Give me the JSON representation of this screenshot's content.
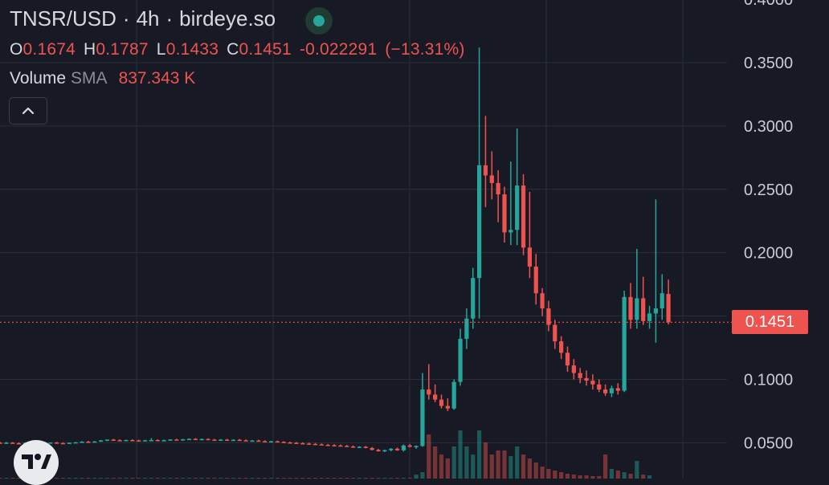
{
  "header": {
    "symbol": "TNSR/USD",
    "interval": "4h",
    "source": "birdeye.so",
    "status": "market-open"
  },
  "ohlc": {
    "o_label": "O",
    "o_value": "0.1674",
    "h_label": "H",
    "h_value": "0.1787",
    "l_label": "L",
    "l_value": "0.1433",
    "c_label": "C",
    "c_value": "0.1451",
    "change": "-0.022291",
    "change_pct": "(−13.31%)"
  },
  "volume": {
    "label": "Volume",
    "indicator": "SMA",
    "value": "837.343 K"
  },
  "last_price_label": "0.1451",
  "colors": {
    "bg": "#171a24",
    "up": "#26a69a",
    "down": "#ef5350",
    "grid": "#2a2e39",
    "text": "#d7d9de"
  },
  "icons": {
    "collapse": "chevron-up-icon",
    "logo": "tradingview-logo-icon"
  },
  "chart_data": {
    "type": "candlestick",
    "ylim": [
      0.03,
      0.4
    ],
    "y_ticks": [
      "0.4000",
      "0.3500",
      "0.3000",
      "0.2500",
      "0.2000",
      "0.1500",
      "0.1000",
      "0.0500"
    ],
    "last_price": 0.1451,
    "candles": [
      [
        0.05,
        0.0508,
        0.0496,
        0.0498
      ],
      [
        0.0498,
        0.0506,
        0.0494,
        0.05
      ],
      [
        0.05,
        0.0505,
        0.0492,
        0.0496
      ],
      [
        0.0496,
        0.0503,
        0.049,
        0.0494
      ],
      [
        0.0494,
        0.0502,
        0.049,
        0.0499
      ],
      [
        0.0499,
        0.0504,
        0.0493,
        0.0497
      ],
      [
        0.0497,
        0.0506,
        0.0494,
        0.0503
      ],
      [
        0.0503,
        0.0508,
        0.0495,
        0.0498
      ],
      [
        0.0498,
        0.0504,
        0.0493,
        0.0501
      ],
      [
        0.0501,
        0.0507,
        0.0495,
        0.0497
      ],
      [
        0.0497,
        0.0503,
        0.049,
        0.0494
      ],
      [
        0.0494,
        0.0502,
        0.049,
        0.05
      ],
      [
        0.05,
        0.0506,
        0.0495,
        0.0503
      ],
      [
        0.0503,
        0.0512,
        0.0498,
        0.0508
      ],
      [
        0.0508,
        0.0514,
        0.0502,
        0.0506
      ],
      [
        0.0506,
        0.0513,
        0.0501,
        0.051
      ],
      [
        0.051,
        0.0522,
        0.0506,
        0.0518
      ],
      [
        0.0518,
        0.0526,
        0.0512,
        0.0524
      ],
      [
        0.0524,
        0.053,
        0.0516,
        0.052
      ],
      [
        0.052,
        0.0527,
        0.0513,
        0.0516
      ],
      [
        0.0516,
        0.0524,
        0.0511,
        0.0521
      ],
      [
        0.0521,
        0.0527,
        0.0515,
        0.0518
      ],
      [
        0.0518,
        0.0524,
        0.0512,
        0.0515
      ],
      [
        0.0515,
        0.0522,
        0.051,
        0.0519
      ],
      [
        0.0519,
        0.0536,
        0.0514,
        0.0521
      ],
      [
        0.0521,
        0.0527,
        0.0513,
        0.0517
      ],
      [
        0.0517,
        0.0524,
        0.0511,
        0.052
      ],
      [
        0.052,
        0.0528,
        0.0515,
        0.0525
      ],
      [
        0.0525,
        0.0531,
        0.0518,
        0.0522
      ],
      [
        0.0522,
        0.053,
        0.0516,
        0.0527
      ],
      [
        0.0527,
        0.0534,
        0.0521,
        0.053
      ],
      [
        0.053,
        0.0536,
        0.0523,
        0.0526
      ],
      [
        0.0526,
        0.0533,
        0.052,
        0.0529
      ],
      [
        0.0529,
        0.0535,
        0.0522,
        0.0524
      ],
      [
        0.0524,
        0.053,
        0.0518,
        0.0521
      ],
      [
        0.0521,
        0.0528,
        0.0515,
        0.0524
      ],
      [
        0.0524,
        0.053,
        0.0518,
        0.052
      ],
      [
        0.052,
        0.0527,
        0.0514,
        0.0523
      ],
      [
        0.0523,
        0.0529,
        0.0517,
        0.0519
      ],
      [
        0.0519,
        0.0525,
        0.0511,
        0.0514
      ],
      [
        0.0514,
        0.0521,
        0.0508,
        0.0517
      ],
      [
        0.0517,
        0.0523,
        0.051,
        0.0512
      ],
      [
        0.0512,
        0.0519,
        0.0505,
        0.0508
      ],
      [
        0.0508,
        0.0515,
        0.0501,
        0.0511
      ],
      [
        0.0511,
        0.0517,
        0.0503,
        0.0506
      ],
      [
        0.0506,
        0.0512,
        0.0498,
        0.0502
      ],
      [
        0.0502,
        0.0509,
        0.0495,
        0.0499
      ],
      [
        0.0499,
        0.0506,
        0.0492,
        0.0496
      ],
      [
        0.0496,
        0.0503,
        0.0489,
        0.0493
      ],
      [
        0.0493,
        0.05,
        0.0486,
        0.049
      ],
      [
        0.049,
        0.0498,
        0.0484,
        0.0487
      ],
      [
        0.0487,
        0.0494,
        0.048,
        0.0483
      ],
      [
        0.0483,
        0.049,
        0.0477,
        0.048
      ],
      [
        0.048,
        0.0488,
        0.0474,
        0.0478
      ],
      [
        0.0478,
        0.0486,
        0.0471,
        0.0475
      ],
      [
        0.0475,
        0.0482,
        0.0468,
        0.047
      ],
      [
        0.047,
        0.0478,
        0.0462,
        0.0465
      ],
      [
        0.0465,
        0.0472,
        0.0458,
        0.0468
      ],
      [
        0.0468,
        0.0474,
        0.0456,
        0.0458
      ],
      [
        0.0458,
        0.0466,
        0.044,
        0.0443
      ],
      [
        0.0443,
        0.0452,
        0.043,
        0.0432
      ],
      [
        0.0432,
        0.0446,
        0.0426,
        0.0441
      ],
      [
        0.0441,
        0.0458,
        0.0432,
        0.0452
      ],
      [
        0.0452,
        0.0462,
        0.0436,
        0.044
      ],
      [
        0.044,
        0.0486,
        0.043,
        0.0478
      ],
      [
        0.0478,
        0.049,
        0.0462,
        0.0468
      ],
      [
        0.0468,
        0.0478,
        0.0452,
        0.0474
      ],
      [
        0.0474,
        0.105,
        0.0468,
        0.092
      ],
      [
        0.092,
        0.112,
        0.084,
        0.088
      ],
      [
        0.088,
        0.096,
        0.082,
        0.084
      ],
      [
        0.084,
        0.088,
        0.077,
        0.079
      ],
      [
        0.079,
        0.085,
        0.075,
        0.077
      ],
      [
        0.077,
        0.1,
        0.076,
        0.098
      ],
      [
        0.098,
        0.14,
        0.095,
        0.132
      ],
      [
        0.132,
        0.156,
        0.124,
        0.148
      ],
      [
        0.148,
        0.188,
        0.14,
        0.18
      ],
      [
        0.18,
        0.362,
        0.148,
        0.269
      ],
      [
        0.269,
        0.308,
        0.236,
        0.261
      ],
      [
        0.261,
        0.28,
        0.242,
        0.255
      ],
      [
        0.255,
        0.265,
        0.224,
        0.246
      ],
      [
        0.246,
        0.252,
        0.208,
        0.216
      ],
      [
        0.216,
        0.272,
        0.206,
        0.218
      ],
      [
        0.218,
        0.298,
        0.206,
        0.253
      ],
      [
        0.253,
        0.262,
        0.198,
        0.204
      ],
      [
        0.204,
        0.248,
        0.18,
        0.189
      ],
      [
        0.189,
        0.199,
        0.159,
        0.168
      ],
      [
        0.168,
        0.172,
        0.15,
        0.156
      ],
      [
        0.156,
        0.162,
        0.138,
        0.143
      ],
      [
        0.143,
        0.147,
        0.124,
        0.13
      ],
      [
        0.13,
        0.134,
        0.116,
        0.121
      ],
      [
        0.121,
        0.126,
        0.106,
        0.111
      ],
      [
        0.111,
        0.116,
        0.1,
        0.105
      ],
      [
        0.105,
        0.109,
        0.097,
        0.101
      ],
      [
        0.101,
        0.107,
        0.095,
        0.099
      ],
      [
        0.099,
        0.104,
        0.092,
        0.096
      ],
      [
        0.096,
        0.1,
        0.09,
        0.092
      ],
      [
        0.092,
        0.096,
        0.087,
        0.089
      ],
      [
        0.089,
        0.095,
        0.086,
        0.093
      ],
      [
        0.093,
        0.097,
        0.088,
        0.091
      ],
      [
        0.091,
        0.17,
        0.09,
        0.165
      ],
      [
        0.165,
        0.176,
        0.14,
        0.147
      ],
      [
        0.147,
        0.203,
        0.14,
        0.164
      ],
      [
        0.164,
        0.181,
        0.143,
        0.146
      ],
      [
        0.146,
        0.158,
        0.14,
        0.152
      ],
      [
        0.152,
        0.242,
        0.129,
        0.156
      ],
      [
        0.156,
        0.183,
        0.147,
        0.168
      ],
      [
        0.1674,
        0.1787,
        0.1433,
        0.1451
      ]
    ],
    "volume": [
      1,
      1,
      1,
      1,
      1,
      1,
      1,
      1,
      1,
      1,
      1,
      1,
      1,
      1,
      1,
      1,
      1,
      1,
      1,
      1,
      1,
      1,
      1,
      1,
      1,
      1,
      1,
      1,
      1,
      1,
      1,
      1,
      1,
      1,
      1,
      1,
      1,
      1,
      1,
      1,
      1,
      1,
      1,
      1,
      1,
      1,
      1,
      1,
      1,
      1,
      1,
      1,
      1,
      1,
      1,
      1,
      1,
      1,
      1,
      1,
      1,
      1,
      1,
      1,
      1,
      1,
      5,
      8,
      55,
      40,
      30,
      25,
      40,
      60,
      40,
      30,
      60,
      45,
      30,
      35,
      35,
      28,
      40,
      30,
      25,
      20,
      15,
      12,
      10,
      8,
      6,
      5,
      4,
      4,
      3,
      3,
      30,
      12,
      10,
      8,
      6,
      22,
      5,
      4
    ]
  }
}
